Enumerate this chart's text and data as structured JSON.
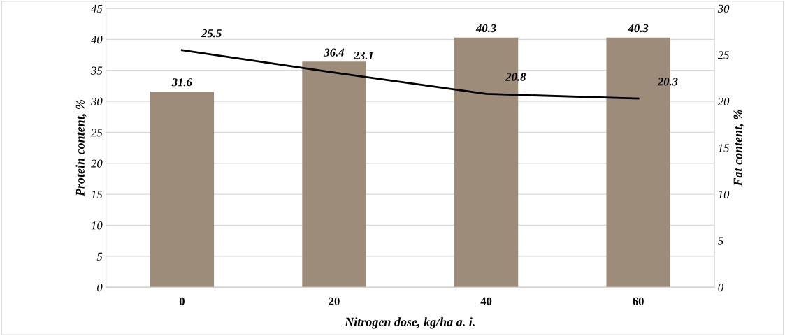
{
  "chart_data": {
    "type": "bar",
    "xlabel": "Nitrogen dose, kg/ha a. i.",
    "ylabel": "Protein content, %",
    "y2label": "Fat content, %",
    "categories": [
      "0",
      "20",
      "40",
      "60"
    ],
    "series": [
      {
        "color": "#9e8c7b",
        "values": [
          31.6,
          36.4,
          40.3,
          40.3
        ]
      },
      {
        "type": "line",
        "axis": "y2",
        "color": "#000000",
        "values": [
          25.5,
          23.1,
          20.8,
          20.3
        ]
      }
    ],
    "ylim": [
      0,
      45
    ],
    "yticks": [
      0,
      5,
      10,
      15,
      20,
      25,
      30,
      35,
      40,
      45
    ],
    "y2lim": [
      0,
      30
    ],
    "y2ticks": [
      0,
      5,
      10,
      15,
      20,
      25,
      30
    ],
    "grid": "y",
    "data_labels": true,
    "marker": "none",
    "line_style": "solid"
  }
}
